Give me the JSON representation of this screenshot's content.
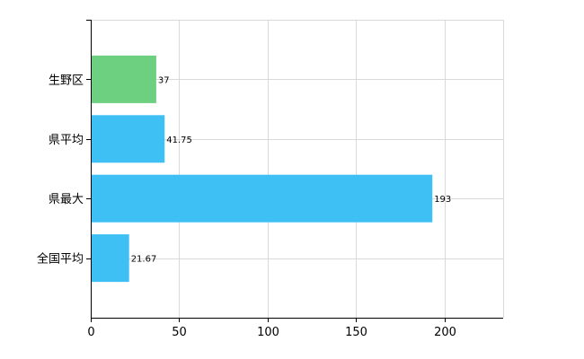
{
  "chart_data": {
    "type": "bar",
    "orientation": "horizontal",
    "categories": [
      "生野区",
      "県平均",
      "県最大",
      "全国平均"
    ],
    "values": [
      37,
      41.75,
      193,
      21.67
    ],
    "value_labels": [
      "37",
      "41.75",
      "193",
      "21.67"
    ],
    "bar_colors": [
      "#6dcf80",
      "#3ec0f5",
      "#3ec0f5",
      "#3ec0f5"
    ],
    "title": "",
    "xlabel": "",
    "ylabel": "",
    "xlim": [
      0,
      233
    ],
    "xticks": [
      0,
      50,
      100,
      150,
      200
    ],
    "xtick_labels": [
      "0",
      "50",
      "100",
      "150",
      "200"
    ],
    "grid": true,
    "legend": "none"
  }
}
